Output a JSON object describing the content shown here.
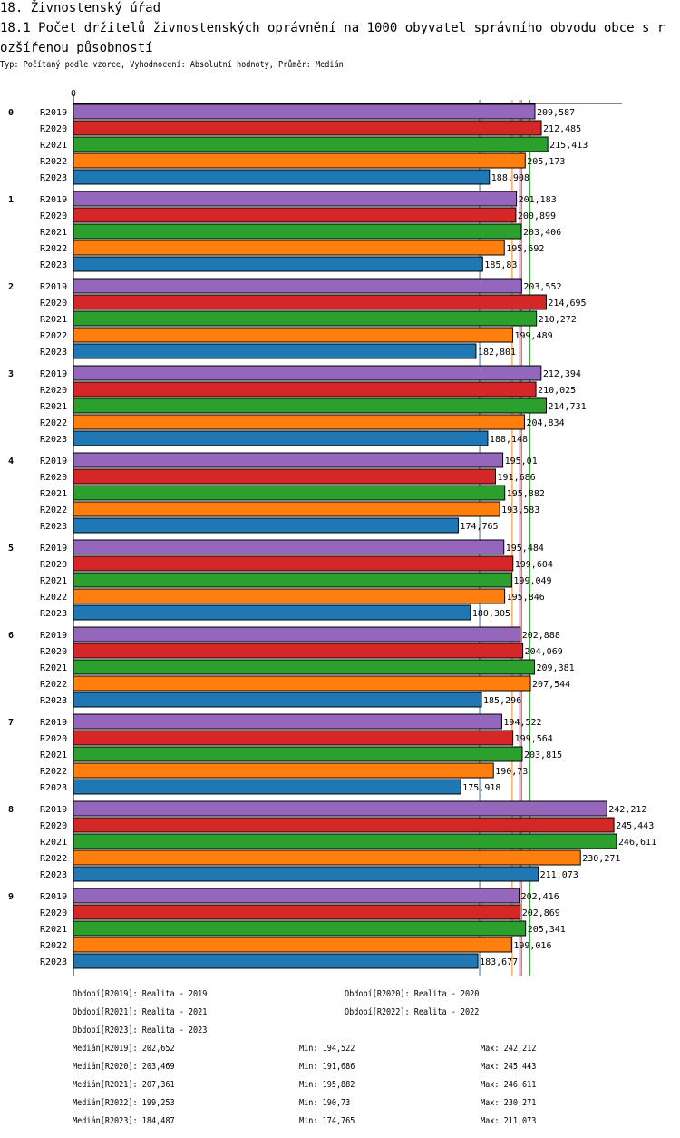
{
  "header": {
    "title": "18. Živnostenský úřad",
    "subtitle": "18.1 Počet držitelů živnostenských oprávnění na 1000 obyvatel správního obvodu obce s rozšířenou působností",
    "info": "Typ: Počítaný podle vzorce, Vyhodnocení: Absolutní hodnoty, Průměr: Medián"
  },
  "chart_data": {
    "type": "bar",
    "orientation": "horizontal",
    "axis_zero_label": "0",
    "xlim": [
      0,
      249
    ],
    "categories": [
      "0",
      "1",
      "2",
      "3",
      "4",
      "5",
      "6",
      "7",
      "8",
      "9"
    ],
    "series": [
      {
        "name": "R2019",
        "color": "#9467bd",
        "values": [
          209.587,
          201.183,
          203.552,
          212.394,
          195.01,
          195.484,
          202.888,
          194.522,
          242.212,
          202.416
        ],
        "labels": [
          "209,587",
          "201,183",
          "203,552",
          "212,394",
          "195,01",
          "195,484",
          "202,888",
          "194,522",
          "242,212",
          "202,416"
        ]
      },
      {
        "name": "R2020",
        "color": "#d62728",
        "values": [
          212.485,
          200.899,
          214.695,
          210.025,
          191.686,
          199.604,
          204.069,
          199.564,
          245.443,
          202.869
        ],
        "labels": [
          "212,485",
          "200,899",
          "214,695",
          "210,025",
          "191,686",
          "199,604",
          "204,069",
          "199,564",
          "245,443",
          "202,869"
        ]
      },
      {
        "name": "R2021",
        "color": "#2ca02c",
        "values": [
          215.413,
          203.406,
          210.272,
          214.731,
          195.882,
          199.049,
          209.381,
          203.815,
          246.611,
          205.341
        ],
        "labels": [
          "215,413",
          "203,406",
          "210,272",
          "214,731",
          "195,882",
          "199,049",
          "209,381",
          "203,815",
          "246,611",
          "205,341"
        ]
      },
      {
        "name": "R2022",
        "color": "#ff7f0e",
        "values": [
          205.173,
          195.692,
          199.489,
          204.834,
          193.583,
          195.846,
          207.544,
          190.73,
          230.271,
          199.016
        ],
        "labels": [
          "205,173",
          "195,692",
          "199,489",
          "204,834",
          "193,583",
          "195,846",
          "207,544",
          "190,73",
          "230,271",
          "199,016"
        ]
      },
      {
        "name": "R2023",
        "color": "#1f77b4",
        "values": [
          188.908,
          185.83,
          182.801,
          188.148,
          174.765,
          180.305,
          185.296,
          175.918,
          211.073,
          183.677
        ],
        "labels": [
          "188,908",
          "185,83",
          "182,801",
          "188,148",
          "174,765",
          "180,305",
          "185,296",
          "175,918",
          "211,073",
          "183,677"
        ]
      }
    ],
    "medians": {
      "R2019": 202.652,
      "R2020": 203.469,
      "R2021": 207.361,
      "R2022": 199.253,
      "R2023": 184.487
    }
  },
  "legend": {
    "periods": [
      "Období[R2019]: Realita - 2019",
      "Období[R2020]: Realita - 2020",
      "Období[R2021]: Realita - 2021",
      "Období[R2022]: Realita - 2022",
      "Období[R2023]: Realita - 2023"
    ],
    "stats": [
      {
        "median": "Medián[R2019]: 202,652",
        "min": "Min: 194,522",
        "max": "Max: 242,212"
      },
      {
        "median": "Medián[R2020]: 203,469",
        "min": "Min: 191,686",
        "max": "Max: 245,443"
      },
      {
        "median": "Medián[R2021]: 207,361",
        "min": "Min: 195,882",
        "max": "Max: 246,611"
      },
      {
        "median": "Medián[R2022]: 199,253",
        "min": "Min: 190,73",
        "max": "Max: 230,271"
      },
      {
        "median": "Medián[R2023]: 184,487",
        "min": "Min: 174,765",
        "max": "Max: 211,073"
      }
    ]
  }
}
